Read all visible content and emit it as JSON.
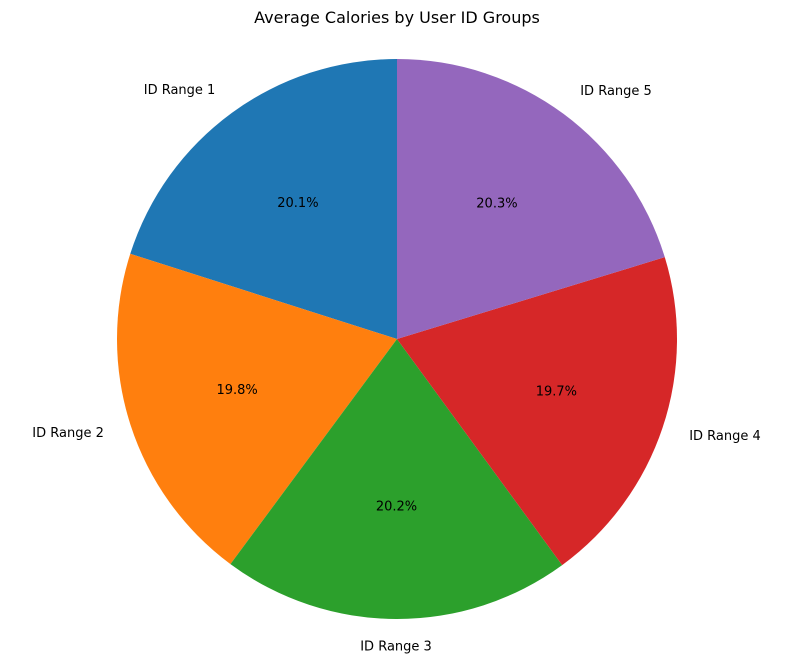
{
  "chart_data": {
    "type": "pie",
    "title": "Average Calories by User ID Groups",
    "categories": [
      "ID Range 1",
      "ID Range 2",
      "ID Range 3",
      "ID Range 4",
      "ID Range 5"
    ],
    "values": [
      20.1,
      19.8,
      20.2,
      19.7,
      20.3
    ],
    "value_labels": [
      "20.1%",
      "19.8%",
      "20.2%",
      "19.7%",
      "20.3%"
    ],
    "colors": [
      "#1f77b4",
      "#ff7f0e",
      "#2ca02c",
      "#d62728",
      "#9467bd"
    ],
    "start_angle_degrees": 90,
    "direction": "counterclockwise",
    "legend": "none"
  }
}
